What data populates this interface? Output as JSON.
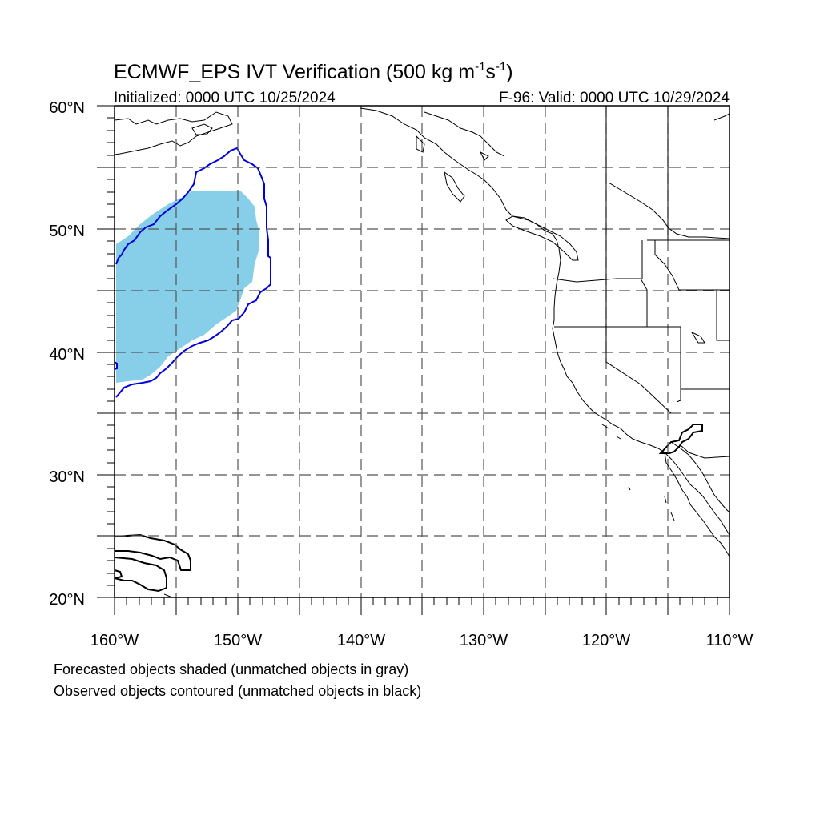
{
  "title": {
    "main": "ECMWF_EPS IVT Verification (500 kg m",
    "sup1": "-1",
    "mid": "s",
    "sup2": "-1",
    "end": ")"
  },
  "subtitle_left": "Initialized: 0000 UTC 10/25/2024",
  "subtitle_right": "F-96: Valid: 0000 UTC 10/29/2024",
  "lat_labels": [
    "60°N",
    "50°N",
    "40°N",
    "30°N",
    "20°N"
  ],
  "lon_labels": [
    "160°W",
    "150°W",
    "140°W",
    "130°W",
    "120°W",
    "110°W"
  ],
  "legend_notes": [
    "Forecasted objects shaded (unmatched objects in gray)",
    "Observed objects contoured (unmatched objects in black)"
  ],
  "colors": {
    "forecast_fill": "#87cfe8",
    "observed_matched": "#0000dd",
    "observed_unmatched": "#000000",
    "grid": "#555555"
  }
}
